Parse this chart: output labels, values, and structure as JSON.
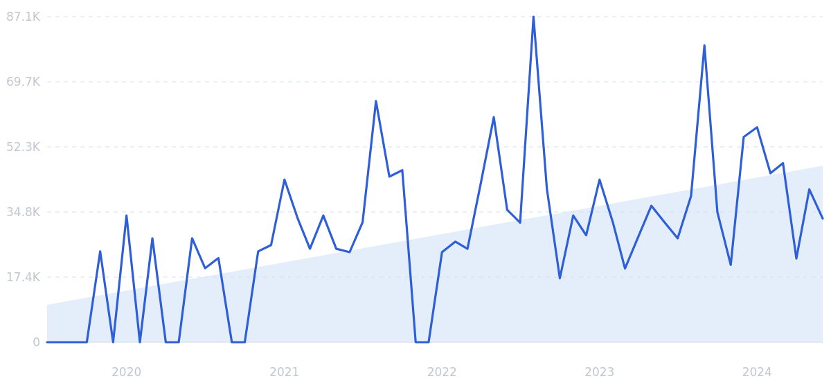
{
  "chart_data": {
    "type": "line",
    "x": [
      "2019-07",
      "2019-08",
      "2019-09",
      "2019-10",
      "2019-11",
      "2019-12",
      "2020-01",
      "2020-02",
      "2020-03",
      "2020-04",
      "2020-05",
      "2020-06",
      "2020-07",
      "2020-08",
      "2020-09",
      "2020-10",
      "2020-11",
      "2020-12",
      "2021-01",
      "2021-02",
      "2021-03",
      "2021-04",
      "2021-05",
      "2021-06",
      "2021-07",
      "2021-08",
      "2021-09",
      "2021-10",
      "2021-11",
      "2021-12",
      "2022-01",
      "2022-02",
      "2022-03",
      "2022-04",
      "2022-05",
      "2022-06",
      "2022-07",
      "2022-08",
      "2022-09",
      "2022-10",
      "2022-11",
      "2022-12",
      "2023-01",
      "2023-02",
      "2023-03",
      "2023-04",
      "2023-05",
      "2023-06",
      "2023-07",
      "2023-08",
      "2023-09",
      "2023-10",
      "2023-11",
      "2023-12",
      "2024-01",
      "2024-02",
      "2024-03",
      "2024-04",
      "2024-05",
      "2024-06"
    ],
    "series": [
      {
        "type": "area",
        "color": "#e4eefb",
        "x": [
          "2019-07",
          "2024-06"
        ],
        "values": [
          10000,
          47200
        ]
      },
      {
        "color": "#2f5fd8",
        "values": [
          0,
          0,
          0,
          0,
          24300,
          0,
          33900,
          0,
          27800,
          0,
          0,
          27800,
          19800,
          22500,
          0,
          0,
          24300,
          26000,
          43500,
          33000,
          25000,
          33900,
          25000,
          24100,
          32100,
          64500,
          44300,
          46000,
          0,
          0,
          24100,
          26900,
          25000,
          42600,
          60200,
          35400,
          32000,
          87100,
          41000,
          17100,
          33900,
          28600,
          43500,
          32000,
          19700,
          28300,
          36500,
          32000,
          27800,
          39100,
          79400,
          34800,
          20700,
          54900,
          57500,
          45200,
          47900,
          22400,
          40900,
          33100
        ]
      }
    ],
    "xlim": [
      "2019-07",
      "2024-06"
    ],
    "xticks": [
      "2020",
      "2021",
      "2022",
      "2023",
      "2024"
    ],
    "ylim": [
      0,
      87100
    ],
    "yticks": [
      0,
      {
        "value": 17420,
        "label": "17.4K"
      },
      {
        "value": 34840,
        "label": "34.8K"
      },
      {
        "value": 52260,
        "label": "52.3K"
      },
      {
        "value": 69680,
        "label": "69.7K"
      },
      {
        "value": 87100,
        "label": "87.1K"
      }
    ],
    "grid": "y",
    "marker": "none",
    "line_style": "solid"
  }
}
